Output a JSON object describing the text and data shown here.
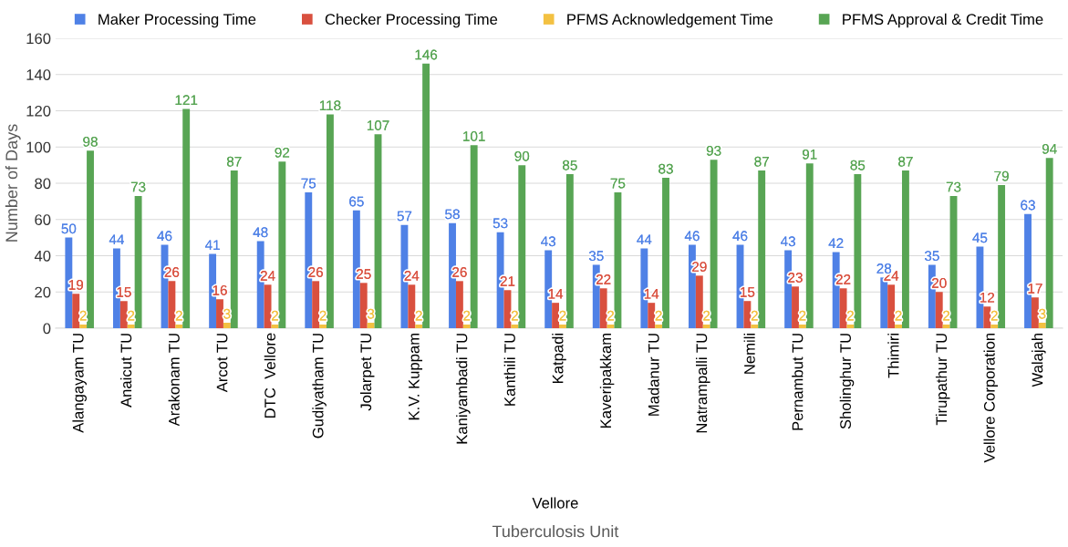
{
  "chart_data": {
    "type": "bar",
    "xlabel": "Tuberculosis Unit",
    "ylabel": "Number of Days",
    "categories": [
      "Alangayam TU",
      "Anaicut TU",
      "Arakonam TU",
      "Arcot TU",
      "DTC  Vellore",
      "Gudiyatham TU",
      "Jolarpet TU",
      "K.V. Kuppam",
      "Kaniyambadi TU",
      "Kanthili TU",
      "Katpadi",
      "Kaveripakkam",
      "Madanur TU",
      "Natrampalli TU",
      "Nemili",
      "Pernambut TU",
      "Sholinghur TU",
      "Thimiri",
      "Tirupathur TU",
      "Vellore Corporation",
      "Walajah"
    ],
    "series": [
      {
        "name": "Maker Processing Time",
        "color": "#4f81e6",
        "values": [
          50,
          44,
          46,
          41,
          48,
          75,
          65,
          57,
          58,
          53,
          43,
          35,
          44,
          46,
          46,
          43,
          42,
          28,
          35,
          45,
          63
        ]
      },
      {
        "name": "Checker Processing Time",
        "color": "#d9503f",
        "values": [
          19,
          15,
          26,
          16,
          24,
          26,
          25,
          24,
          26,
          21,
          14,
          22,
          14,
          29,
          15,
          23,
          22,
          24,
          20,
          12,
          17
        ]
      },
      {
        "name": "PFMS Acknowledgement Time",
        "color": "#f3c142",
        "values": [
          2,
          2,
          2,
          3,
          2,
          2,
          3,
          2,
          2,
          2,
          2,
          2,
          2,
          2,
          2,
          2,
          2,
          2,
          2,
          2,
          3
        ]
      },
      {
        "name": "PFMS Approval & Credit Time",
        "color": "#58a554",
        "values": [
          98,
          73,
          121,
          87,
          92,
          118,
          107,
          146,
          101,
          90,
          85,
          75,
          83,
          93,
          87,
          91,
          85,
          87,
          73,
          79,
          94
        ]
      }
    ],
    "ylim": [
      0,
      160
    ],
    "yticks": [
      0,
      20,
      40,
      60,
      80,
      100,
      120,
      140,
      160
    ],
    "grid": "y",
    "legend": "top",
    "data_labels": true,
    "annotations": [
      "Vellore"
    ]
  }
}
